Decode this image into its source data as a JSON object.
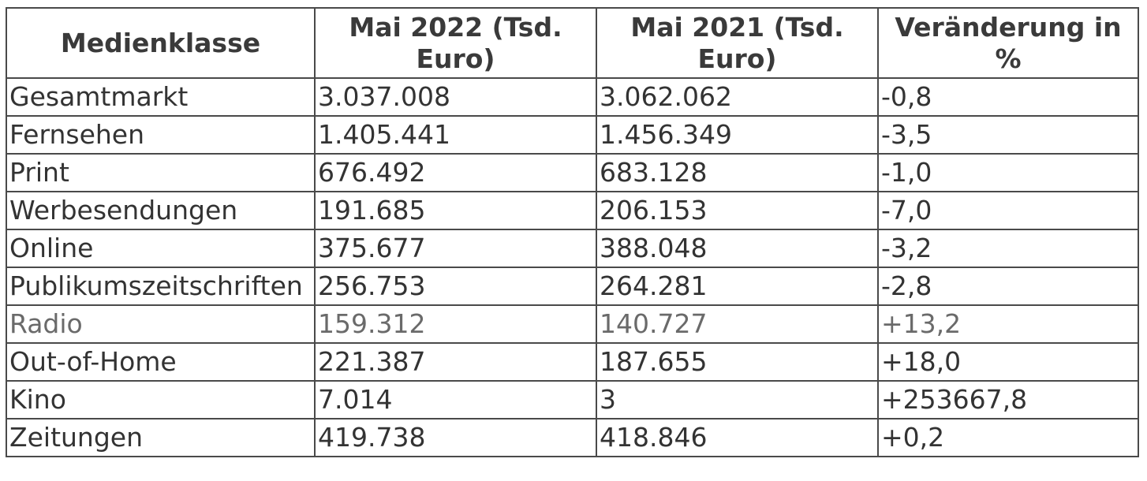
{
  "table": {
    "headers": [
      "Medienklasse",
      "Mai 2022 (Tsd. Euro)",
      "Mai 2021 (Tsd. Euro)",
      "Veränderung in %"
    ],
    "rows": [
      [
        "Gesamtmarkt",
        "3.037.008",
        "3.062.062",
        "-0,8"
      ],
      [
        "Fernsehen",
        "1.405.441",
        "1.456.349",
        "-3,5"
      ],
      [
        "Print",
        "676.492",
        "683.128",
        "-1,0"
      ],
      [
        "Werbesendungen",
        "191.685",
        "206.153",
        "-7,0"
      ],
      [
        "Online",
        "375.677",
        "388.048",
        "-3,2"
      ],
      [
        "Publikumszeitschriften",
        "256.753",
        "264.281",
        "-2,8"
      ],
      [
        "Radio",
        "159.312",
        "140.727",
        "+13,2"
      ],
      [
        "Out-of-Home",
        "221.387",
        "187.655",
        "+18,0"
      ],
      [
        "Kino",
        "7.014",
        "3",
        "+253667,8"
      ],
      [
        "Zeitungen",
        "419.738",
        "418.846",
        "+0,2"
      ]
    ]
  }
}
